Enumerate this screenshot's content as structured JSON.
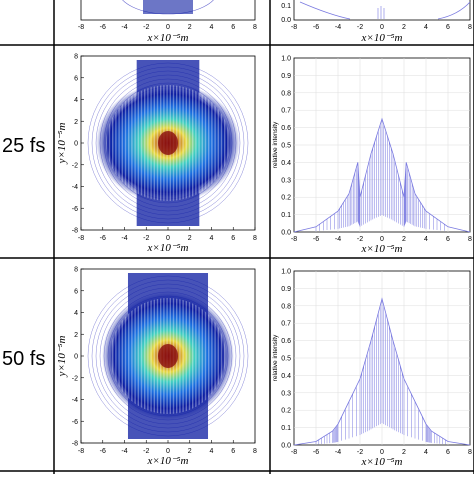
{
  "rows": [
    {
      "time_label": ""
    },
    {
      "time_label": "25 fs"
    },
    {
      "time_label": "50 fs"
    }
  ],
  "left_panel": {
    "x_ticks": [
      "-8",
      "-6",
      "-4",
      "-2",
      "0",
      "2",
      "4",
      "6",
      "8"
    ],
    "y_ticks": [
      "8",
      "6",
      "4",
      "2",
      "0",
      "-2",
      "-4",
      "-6",
      "-8"
    ],
    "xlabel": "x×10⁻⁵m",
    "ylabel": "y×10⁻⁵m"
  },
  "right_panel": {
    "x_ticks": [
      "-8",
      "-6",
      "-4",
      "-2",
      "0",
      "2",
      "4",
      "6",
      "8"
    ],
    "y_ticks": [
      "1.0",
      "0.9",
      "0.8",
      "0.7",
      "0.6",
      "0.5",
      "0.4",
      "0.3",
      "0.2",
      "0.1",
      "0.0"
    ],
    "xlabel": "x×10⁻⁵m",
    "ylabel": "relative intensity",
    "top_visible_ticks": [
      "0.1",
      "0.0"
    ]
  },
  "chart_data": [
    {
      "type": "line",
      "time": "25 fs",
      "xlabel": "x×10⁻⁵m",
      "ylabel": "relative intensity",
      "xlim": [
        -8,
        8
      ],
      "ylim": [
        0,
        1
      ],
      "grid": true,
      "x": [
        -8,
        -6,
        -4,
        -3,
        -2.2,
        -2,
        -1,
        0,
        1,
        2,
        2.2,
        3,
        4,
        6,
        8
      ],
      "y": [
        0.0,
        0.03,
        0.12,
        0.22,
        0.4,
        0.2,
        0.45,
        0.65,
        0.45,
        0.2,
        0.4,
        0.22,
        0.12,
        0.03,
        0.0
      ]
    },
    {
      "type": "line",
      "time": "50 fs",
      "xlabel": "x×10⁻⁵m",
      "ylabel": "relative intensity",
      "xlim": [
        -8,
        8
      ],
      "ylim": [
        0,
        1
      ],
      "grid": true,
      "x": [
        -8,
        -6,
        -4.5,
        -4,
        -2,
        -1,
        0,
        1,
        2,
        4,
        4.5,
        6,
        8
      ],
      "y": [
        0.0,
        0.02,
        0.08,
        0.12,
        0.38,
        0.6,
        0.84,
        0.6,
        0.38,
        0.12,
        0.08,
        0.02,
        0.0
      ]
    }
  ]
}
